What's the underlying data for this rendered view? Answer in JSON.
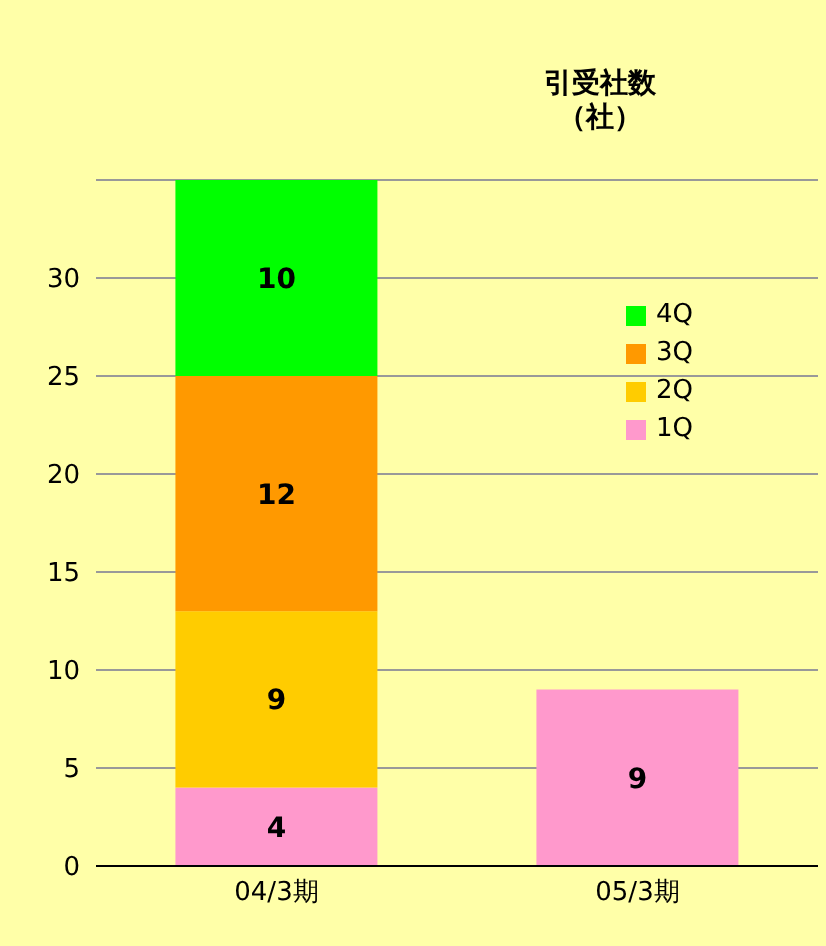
{
  "chart_data": {
    "type": "bar",
    "title": "引受社数",
    "subtitle": "（社）",
    "categories": [
      "04/3期",
      "05/3期"
    ],
    "stacked": true,
    "series": [
      {
        "name": "1Q",
        "color": "#ff99cc",
        "values": [
          4,
          9
        ]
      },
      {
        "name": "2Q",
        "color": "#ffcc00",
        "values": [
          9,
          null
        ]
      },
      {
        "name": "3Q",
        "color": "#ff9900",
        "values": [
          12,
          null
        ]
      },
      {
        "name": "4Q",
        "color": "#00ff00",
        "values": [
          10,
          null
        ]
      }
    ],
    "ylim": [
      0,
      35
    ],
    "yticks": [
      0,
      5,
      10,
      15,
      20,
      25,
      30
    ],
    "grid": "y",
    "legend": "right",
    "data_labels": true
  }
}
